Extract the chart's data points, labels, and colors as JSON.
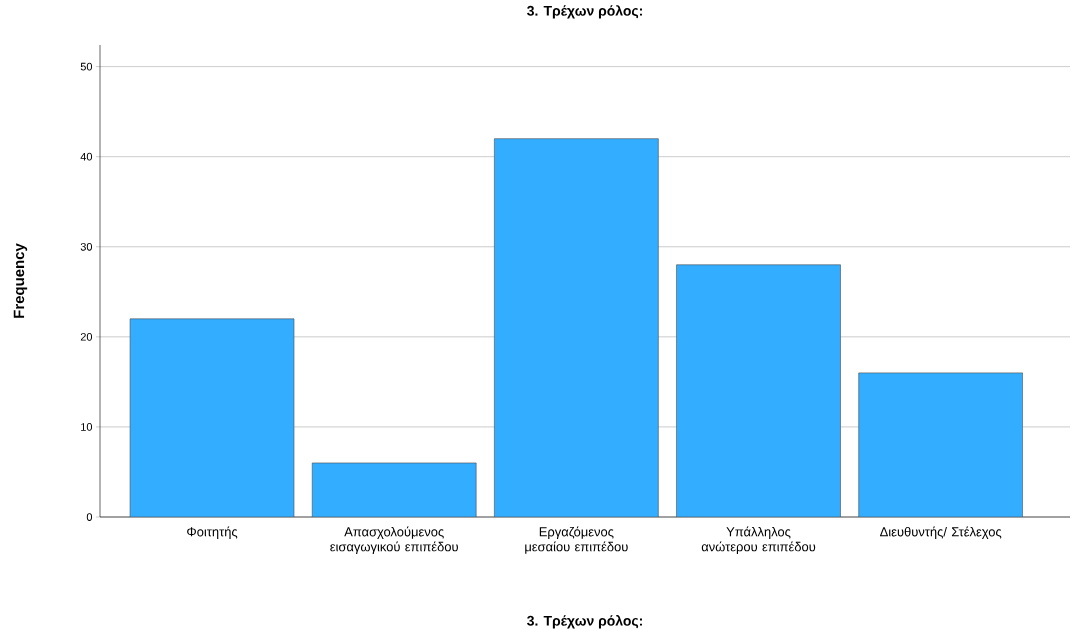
{
  "chart_data": {
    "type": "bar",
    "title": "3. Τρέχων ρόλος:",
    "xlabel": "3. Τρέχων ρόλος:",
    "ylabel": "Frequency",
    "categories": [
      "Φοιτητής",
      "Απασχολούμενος εισαγωγικού επιπέδου",
      "Εργαζόμενος μεσαίου επιπέδου",
      "Υπάλληλος ανώτερου επιπέδου",
      "Διευθυντής/ Στέλεχος"
    ],
    "values": [
      22,
      6,
      42,
      28,
      16
    ],
    "color": "#33adff",
    "ylim": [
      0,
      52.4
    ],
    "yticks": [
      0,
      10,
      20,
      30,
      40,
      50
    ],
    "grid": "y"
  }
}
